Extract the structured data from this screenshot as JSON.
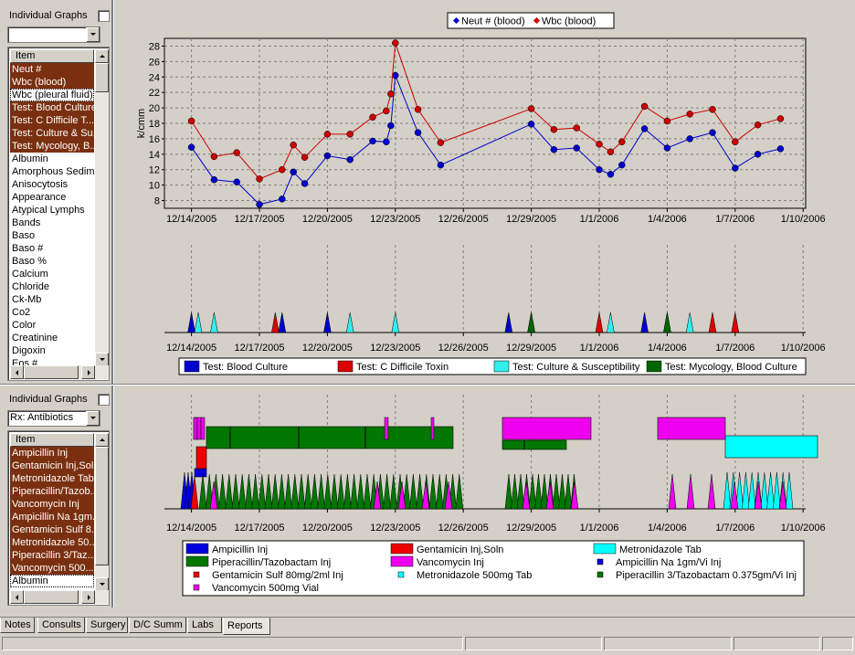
{
  "top_panel": {
    "individual_graphs_label": "Individual Graphs",
    "combo_value": "",
    "list_header": "Item",
    "items": [
      {
        "label": "Neut #",
        "selected": true
      },
      {
        "label": "Wbc (blood)",
        "selected": true
      },
      {
        "label": "Wbc (pleural fluid)",
        "selected": false,
        "focus": true
      },
      {
        "label": "Test: Blood Culture",
        "selected": true
      },
      {
        "label": "Test: C Difficile T...",
        "selected": true
      },
      {
        "label": "Test: Culture & Su...",
        "selected": true
      },
      {
        "label": "Test: Mycology, B...",
        "selected": true
      },
      {
        "label": "Albumin",
        "selected": false
      },
      {
        "label": "Amorphous Sedim...",
        "selected": false
      },
      {
        "label": "Anisocytosis",
        "selected": false
      },
      {
        "label": "Appearance",
        "selected": false
      },
      {
        "label": "Atypical Lymphs",
        "selected": false
      },
      {
        "label": "Bands",
        "selected": false
      },
      {
        "label": "Baso",
        "selected": false
      },
      {
        "label": "Baso #",
        "selected": false
      },
      {
        "label": "Baso %",
        "selected": false
      },
      {
        "label": "Calcium",
        "selected": false
      },
      {
        "label": "Chloride",
        "selected": false
      },
      {
        "label": "Ck-Mb",
        "selected": false
      },
      {
        "label": "Co2",
        "selected": false
      },
      {
        "label": "Color",
        "selected": false
      },
      {
        "label": "Creatinine",
        "selected": false
      },
      {
        "label": "Digoxin",
        "selected": false
      },
      {
        "label": "Eos #",
        "selected": false
      }
    ]
  },
  "bottom_panel": {
    "individual_graphs_label": "Individual Graphs",
    "combo_value": "Rx: Antibiotics",
    "list_header": "Item",
    "items": [
      {
        "label": "Ampicillin Inj",
        "selected": true
      },
      {
        "label": "Gentamicin Inj,Soln",
        "selected": true
      },
      {
        "label": "Metronidazole Tab",
        "selected": true
      },
      {
        "label": "Piperacillin/Tazob...",
        "selected": true
      },
      {
        "label": "Vancomycin Inj",
        "selected": true
      },
      {
        "label": "Ampicillin Na 1gm...",
        "selected": true
      },
      {
        "label": "Gentamicin Sulf 8...",
        "selected": true
      },
      {
        "label": "Metronidazole 50...",
        "selected": true
      },
      {
        "label": "Piperacillin 3/Taz...",
        "selected": true
      },
      {
        "label": "Vancomycin 500...",
        "selected": true
      },
      {
        "label": "Albumin",
        "selected": false,
        "focus": true
      },
      {
        "label": "",
        "selected": false
      }
    ]
  },
  "tabs": [
    {
      "label": "Notes",
      "active": false
    },
    {
      "label": "Consults",
      "active": false
    },
    {
      "label": "Surgery",
      "active": false
    },
    {
      "label": "D/C Summ",
      "active": false
    },
    {
      "label": "Labs",
      "active": false
    },
    {
      "label": "Reports",
      "active": true
    }
  ],
  "colors": {
    "neut": "#0000cc",
    "wbc": "#cc0000",
    "blood_culture": "#0000cc",
    "c_diff": "#dd0000",
    "culture_susc": "#33eeee",
    "mycology": "#006600",
    "ampicillin": "#0000dd",
    "gentamicin": "#ee0000",
    "metronidazole": "#00ffff",
    "piperacillin": "#007700",
    "vancomycin": "#ee00ee"
  },
  "x_ticks": [
    "12/14/2005",
    "12/17/2005",
    "12/20/2005",
    "12/23/2005",
    "12/26/2005",
    "12/29/2005",
    "1/1/2006",
    "1/4/2006",
    "1/7/2006",
    "1/10/2006"
  ],
  "chart_data": [
    {
      "type": "line",
      "x_type": "date",
      "ylabel": "k/cmm",
      "ylim": [
        7,
        29
      ],
      "yticks": [
        8,
        10,
        12,
        14,
        16,
        18,
        20,
        22,
        24,
        26,
        28
      ],
      "xlim": [
        "2005-12-12",
        "2006-01-11"
      ],
      "legend_position": "top-center",
      "grid": true,
      "series": [
        {
          "name": "Neut # (blood)",
          "color": "#0000cc",
          "points": [
            [
              "2005-12-14",
              14.9
            ],
            [
              "2005-12-15",
              10.7
            ],
            [
              "2005-12-16",
              10.4
            ],
            [
              "2005-12-17",
              7.5
            ],
            [
              "2005-12-18",
              8.2
            ],
            [
              "2005-12-18.5",
              11.7
            ],
            [
              "2005-12-19",
              10.2
            ],
            [
              "2005-12-20",
              13.8
            ],
            [
              "2005-12-21",
              13.3
            ],
            [
              "2005-12-22",
              15.7
            ],
            [
              "2005-12-22.6",
              15.6
            ],
            [
              "2005-12-22.8",
              17.7
            ],
            [
              "2005-12-23",
              24.2
            ],
            [
              "2005-12-24",
              16.8
            ],
            [
              "2005-12-25",
              12.6
            ],
            [
              "2005-12-29",
              17.9
            ],
            [
              "2005-12-30",
              14.6
            ],
            [
              "2005-12-31",
              14.8
            ],
            [
              "2006-01-01",
              12.0
            ],
            [
              "2006-01-01.5",
              11.4
            ],
            [
              "2006-01-02",
              12.6
            ],
            [
              "2006-01-03",
              17.3
            ],
            [
              "2006-01-04",
              14.8
            ],
            [
              "2006-01-05",
              16.0
            ],
            [
              "2006-01-06",
              16.8
            ],
            [
              "2006-01-07",
              12.2
            ],
            [
              "2006-01-08",
              14.0
            ],
            [
              "2006-01-09",
              14.7
            ]
          ]
        },
        {
          "name": "Wbc (blood)",
          "color": "#cc0000",
          "points": [
            [
              "2005-12-14",
              18.3
            ],
            [
              "2005-12-15",
              13.7
            ],
            [
              "2005-12-16",
              14.2
            ],
            [
              "2005-12-17",
              10.8
            ],
            [
              "2005-12-18",
              12.0
            ],
            [
              "2005-12-18.5",
              15.2
            ],
            [
              "2005-12-19",
              13.6
            ],
            [
              "2005-12-20",
              16.6
            ],
            [
              "2005-12-21",
              16.6
            ],
            [
              "2005-12-22",
              18.8
            ],
            [
              "2005-12-22.6",
              19.6
            ],
            [
              "2005-12-22.8",
              21.8
            ],
            [
              "2005-12-23",
              28.4
            ],
            [
              "2005-12-24",
              19.8
            ],
            [
              "2005-12-25",
              15.5
            ],
            [
              "2005-12-29",
              19.9
            ],
            [
              "2005-12-30",
              17.2
            ],
            [
              "2005-12-31",
              17.4
            ],
            [
              "2006-01-01",
              15.3
            ],
            [
              "2006-01-01.5",
              14.3
            ],
            [
              "2006-01-02",
              15.6
            ],
            [
              "2006-01-03",
              20.2
            ],
            [
              "2006-01-04",
              18.3
            ],
            [
              "2006-01-05",
              19.2
            ],
            [
              "2006-01-06",
              19.8
            ],
            [
              "2006-01-07",
              15.6
            ],
            [
              "2006-01-08",
              17.8
            ],
            [
              "2006-01-09",
              18.6
            ]
          ]
        }
      ]
    },
    {
      "type": "scatter",
      "x_type": "date",
      "xlim": [
        "2005-12-12",
        "2006-01-11"
      ],
      "legend_position": "bottom-center",
      "series": [
        {
          "name": "Test: Blood Culture",
          "color": "#0000cc",
          "x": [
            "2005-12-14",
            "2005-12-18",
            "2005-12-20",
            "2005-12-28",
            "2006-01-03"
          ]
        },
        {
          "name": "Test: C Difficile Toxin",
          "color": "#dd0000",
          "x": [
            "2005-12-17.7",
            "2006-01-01",
            "2006-01-06",
            "2006-01-07"
          ]
        },
        {
          "name": "Test: Culture & Susceptibility",
          "color": "#33eeee",
          "x": [
            "2005-12-14.3",
            "2005-12-15",
            "2005-12-21",
            "2005-12-23",
            "2005-12-29",
            "2006-01-01.5",
            "2006-01-04",
            "2006-01-05"
          ]
        },
        {
          "name": "Test: Mycology, Blood Culture",
          "color": "#006600",
          "x": [
            "2005-12-29",
            "2006-01-04"
          ]
        }
      ]
    },
    {
      "type": "gantt",
      "x_type": "date",
      "xlim": [
        "2005-12-12",
        "2006-01-11"
      ],
      "legend_position": "bottom",
      "series": [
        {
          "name": "Ampicillin Inj",
          "color": "#0000dd",
          "kind": "bar",
          "ranges": [
            [
              "2005-12-14",
              "2005-12-15"
            ]
          ]
        },
        {
          "name": "Gentamicin Inj,Soln",
          "color": "#ee0000",
          "kind": "bar",
          "ranges": [
            [
              "2005-12-14",
              "2005-12-15"
            ]
          ]
        },
        {
          "name": "Metronidazole Tab",
          "color": "#00ffff",
          "kind": "bar",
          "ranges": [
            [
              "2006-01-07",
              "2006-01-11"
            ]
          ]
        },
        {
          "name": "Piperacillin/Tazobactam Inj",
          "color": "#007700",
          "kind": "bar",
          "ranges": [
            [
              "2005-12-15",
              "2005-12-25"
            ],
            [
              "2005-12-28",
              "2005-12-31"
            ]
          ]
        },
        {
          "name": "Vancomycin Inj",
          "color": "#ee00ee",
          "kind": "bar",
          "ranges": [
            [
              "2005-12-14",
              "2005-12-15"
            ],
            [
              "2005-12-28",
              "2006-01-01"
            ],
            [
              "2006-01-04",
              "2006-01-07"
            ]
          ]
        },
        {
          "name": "Ampicillin Na 1gm/Vi Inj",
          "color": "#0000dd",
          "kind": "dose",
          "x": [
            "2005-12-14",
            "2005-12-14.3"
          ]
        },
        {
          "name": "Gentamicin Sulf 80mg/2ml Inj",
          "color": "#ee0000",
          "kind": "dose",
          "x": [
            "2005-12-14.5"
          ]
        },
        {
          "name": "Metronidazole 500mg Tab",
          "color": "#00ffff",
          "kind": "dose",
          "x": [
            "2006-01-06",
            "2006-01-07",
            "2006-01-08",
            "2006-01-09",
            "2006-01-10"
          ]
        },
        {
          "name": "Piperacillin 3/Tazobactam 0.375gm/Vi Inj",
          "color": "#007700",
          "kind": "dose",
          "x": [
            "2005-12-15",
            "2005-12-25",
            "2005-12-28",
            "2005-12-31"
          ]
        },
        {
          "name": "Vancomycin 500mg Vial",
          "color": "#ee00ee",
          "kind": "dose",
          "x": [
            "2005-12-15",
            "2005-12-20",
            "2005-12-23",
            "2005-12-25",
            "2005-12-29",
            "2006-01-04",
            "2006-01-05",
            "2006-01-06"
          ]
        }
      ]
    }
  ]
}
